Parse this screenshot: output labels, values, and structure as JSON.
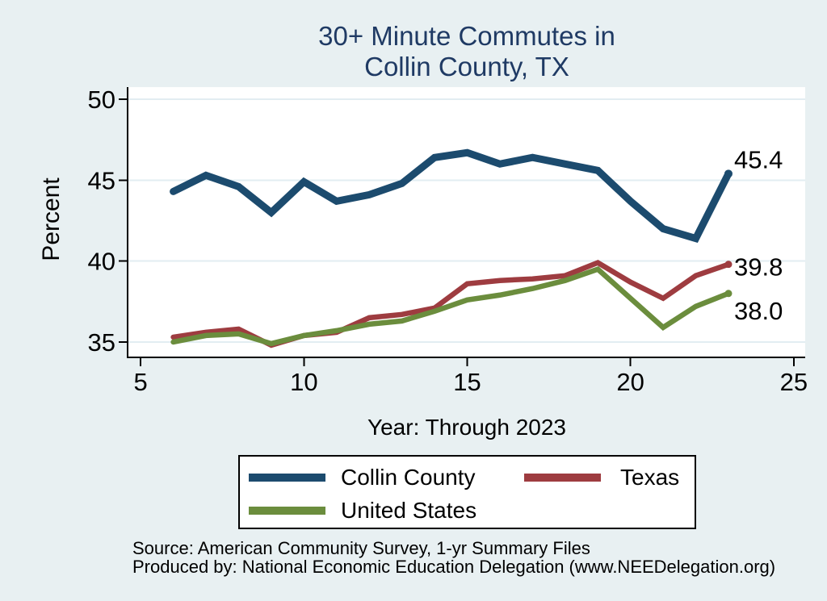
{
  "title": {
    "line1": "30+ Minute Commutes in",
    "line2": "Collin County, TX"
  },
  "chart_data": {
    "type": "line",
    "title": "30+ Minute Commutes in Collin County, TX",
    "xlabel": "Year: Through 2023",
    "ylabel": "Percent",
    "x": [
      6,
      7,
      8,
      9,
      10,
      11,
      12,
      13,
      14,
      15,
      16,
      17,
      18,
      19,
      20,
      21,
      22,
      23
    ],
    "series": [
      {
        "name": "Collin County",
        "color": "#1c4b6e",
        "values": [
          44.3,
          45.3,
          44.6,
          43.0,
          44.9,
          43.7,
          44.1,
          44.8,
          46.4,
          46.7,
          46.0,
          46.4,
          46.0,
          45.6,
          43.7,
          42.0,
          41.4,
          45.4
        ],
        "end_label": "45.4"
      },
      {
        "name": "Texas",
        "color": "#9e3c40",
        "values": [
          35.3,
          35.6,
          35.8,
          34.8,
          35.4,
          35.6,
          36.5,
          36.7,
          37.1,
          38.6,
          38.8,
          38.9,
          39.1,
          39.9,
          38.7,
          37.7,
          39.1,
          39.8
        ],
        "end_label": "39.8"
      },
      {
        "name": "United States",
        "color": "#6b8d3d",
        "values": [
          35.0,
          35.4,
          35.5,
          34.9,
          35.4,
          35.7,
          36.1,
          36.3,
          36.9,
          37.6,
          37.9,
          38.3,
          38.8,
          39.5,
          37.7,
          35.9,
          37.2,
          38.0
        ],
        "end_label": "38.0"
      }
    ],
    "x_ticks": [
      5,
      10,
      15,
      20,
      25
    ],
    "y_ticks": [
      35,
      40,
      45,
      50
    ],
    "xlim": [
      4.6,
      25.35
    ],
    "ylim": [
      34.05,
      50.75
    ],
    "grid": true,
    "legend_position": "bottom"
  },
  "footer": {
    "line1": "Source: American Community Survey, 1-yr Summary Files",
    "line2": "Produced by: National Economic Education Delegation (www.NEEDelegation.org)"
  },
  "colors": {
    "background": "#e8f0f2",
    "plot_background": "#ffffff",
    "grid": "#e2edf2",
    "axis": "#000000",
    "title_text": "#1f3a64",
    "label_text": "#000000"
  }
}
